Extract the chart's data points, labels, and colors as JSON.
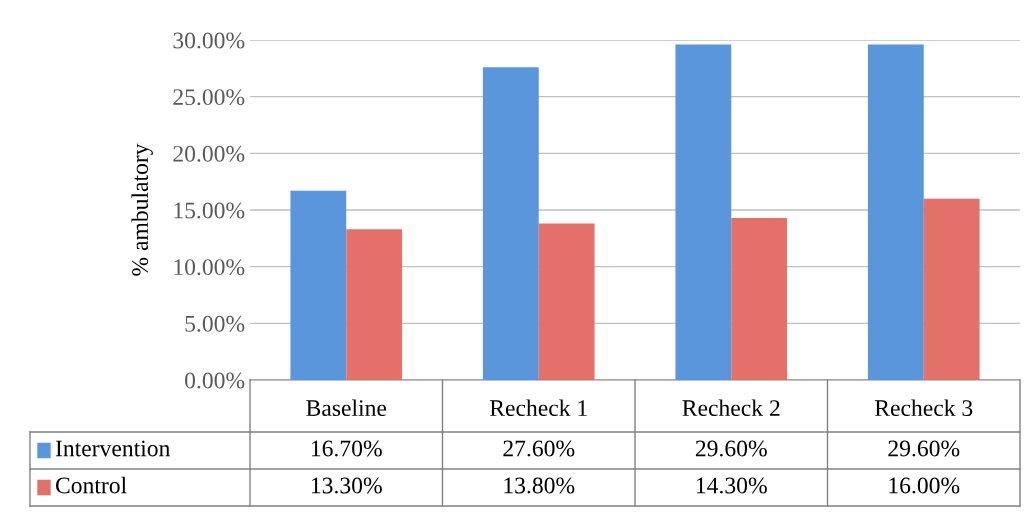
{
  "chart_data": {
    "type": "bar",
    "ylabel": "% ambulatory",
    "categories": [
      "Baseline",
      "Recheck 1",
      "Recheck 2",
      "Recheck 3"
    ],
    "series": [
      {
        "name": "Intervention",
        "color": "#5a96dc",
        "values": [
          16.7,
          27.6,
          29.6,
          29.6
        ],
        "value_labels": [
          "16.70%",
          "27.60%",
          "29.60%",
          "29.60%"
        ]
      },
      {
        "name": "Control",
        "color": "#e4706a",
        "values": [
          13.3,
          13.8,
          14.3,
          16.0
        ],
        "value_labels": [
          "13.30%",
          "13.80%",
          "14.30%",
          "16.00%"
        ]
      }
    ],
    "ylim": [
      0,
      30
    ],
    "yticks": [
      {
        "value": 0,
        "label": "0.00%"
      },
      {
        "value": 5,
        "label": "5.00%"
      },
      {
        "value": 10,
        "label": "10.00%"
      },
      {
        "value": 15,
        "label": "15.00%"
      },
      {
        "value": 20,
        "label": "20.00%"
      },
      {
        "value": 25,
        "label": "25.00%"
      },
      {
        "value": 30,
        "label": "30.00%"
      }
    ],
    "grid": "y",
    "legend": "bottom left"
  }
}
